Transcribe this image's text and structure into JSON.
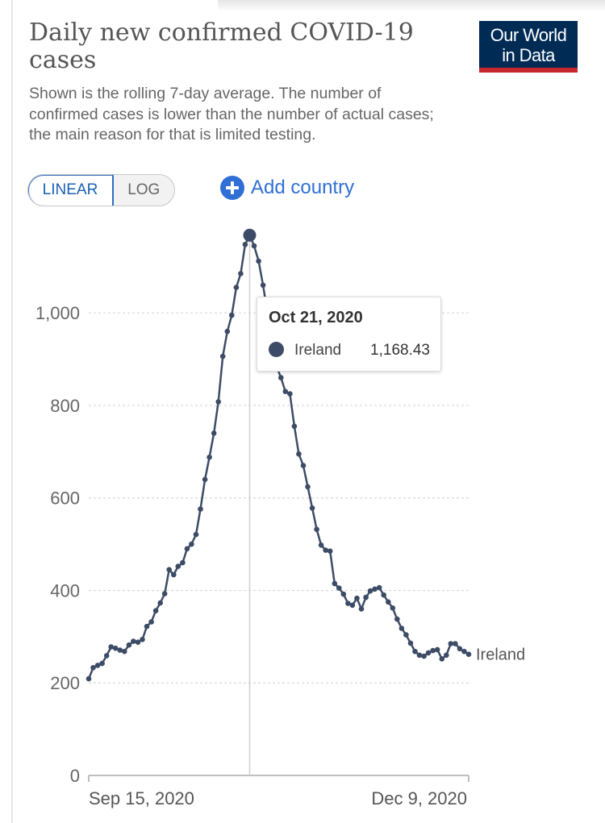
{
  "header": {
    "title": "Daily new confirmed COVID-19 cases",
    "subtitle": "Shown is the rolling 7-day average. The number of confirmed cases is lower than the number of actual cases; the main reason for that is limited testing.",
    "logo_line1": "Our World",
    "logo_line2": "in Data"
  },
  "controls": {
    "scale_linear": "LINEAR",
    "scale_log": "LOG",
    "selected_scale": "LINEAR",
    "add_country": "Add country"
  },
  "tooltip": {
    "date": "Oct 21, 2020",
    "series": "Ireland",
    "value": "1,168.43"
  },
  "colors": {
    "series_line": "#3d4c66",
    "accent_blue": "#2f6fd6",
    "logo_bg": "#002b55",
    "logo_stripe": "#c8262d"
  },
  "chart_data": {
    "type": "line",
    "ylim": [
      0,
      1200
    ],
    "yticks": [
      0,
      200,
      400,
      600,
      800,
      1000
    ],
    "ytick_labels": [
      "0",
      "200",
      "400",
      "600",
      "800",
      "1,000"
    ],
    "x_start_label": "Sep 15, 2020",
    "x_end_label": "Dec 9, 2020",
    "grid": true,
    "highlight_label": "Oct 21, 2020",
    "series": [
      {
        "name": "Ireland",
        "values": [
          209,
          233,
          238,
          242,
          259,
          278,
          275,
          271,
          268,
          282,
          290,
          288,
          294,
          322,
          332,
          356,
          373,
          393,
          445,
          434,
          452,
          460,
          490,
          500,
          521,
          576,
          640,
          688,
          740,
          808,
          906,
          960,
          995,
          1055,
          1085,
          1148,
          1168,
          1145,
          1112,
          1060,
          1000,
          940,
          885,
          860,
          830,
          825,
          755,
          695,
          670,
          624,
          578,
          532,
          498,
          487,
          485,
          415,
          405,
          392,
          372,
          368,
          383,
          360,
          385,
          399,
          403,
          406,
          390,
          375,
          362,
          338,
          318,
          304,
          286,
          268,
          260,
          258,
          265,
          270,
          272,
          252,
          260,
          285,
          285,
          274,
          268,
          262
        ]
      }
    ]
  }
}
